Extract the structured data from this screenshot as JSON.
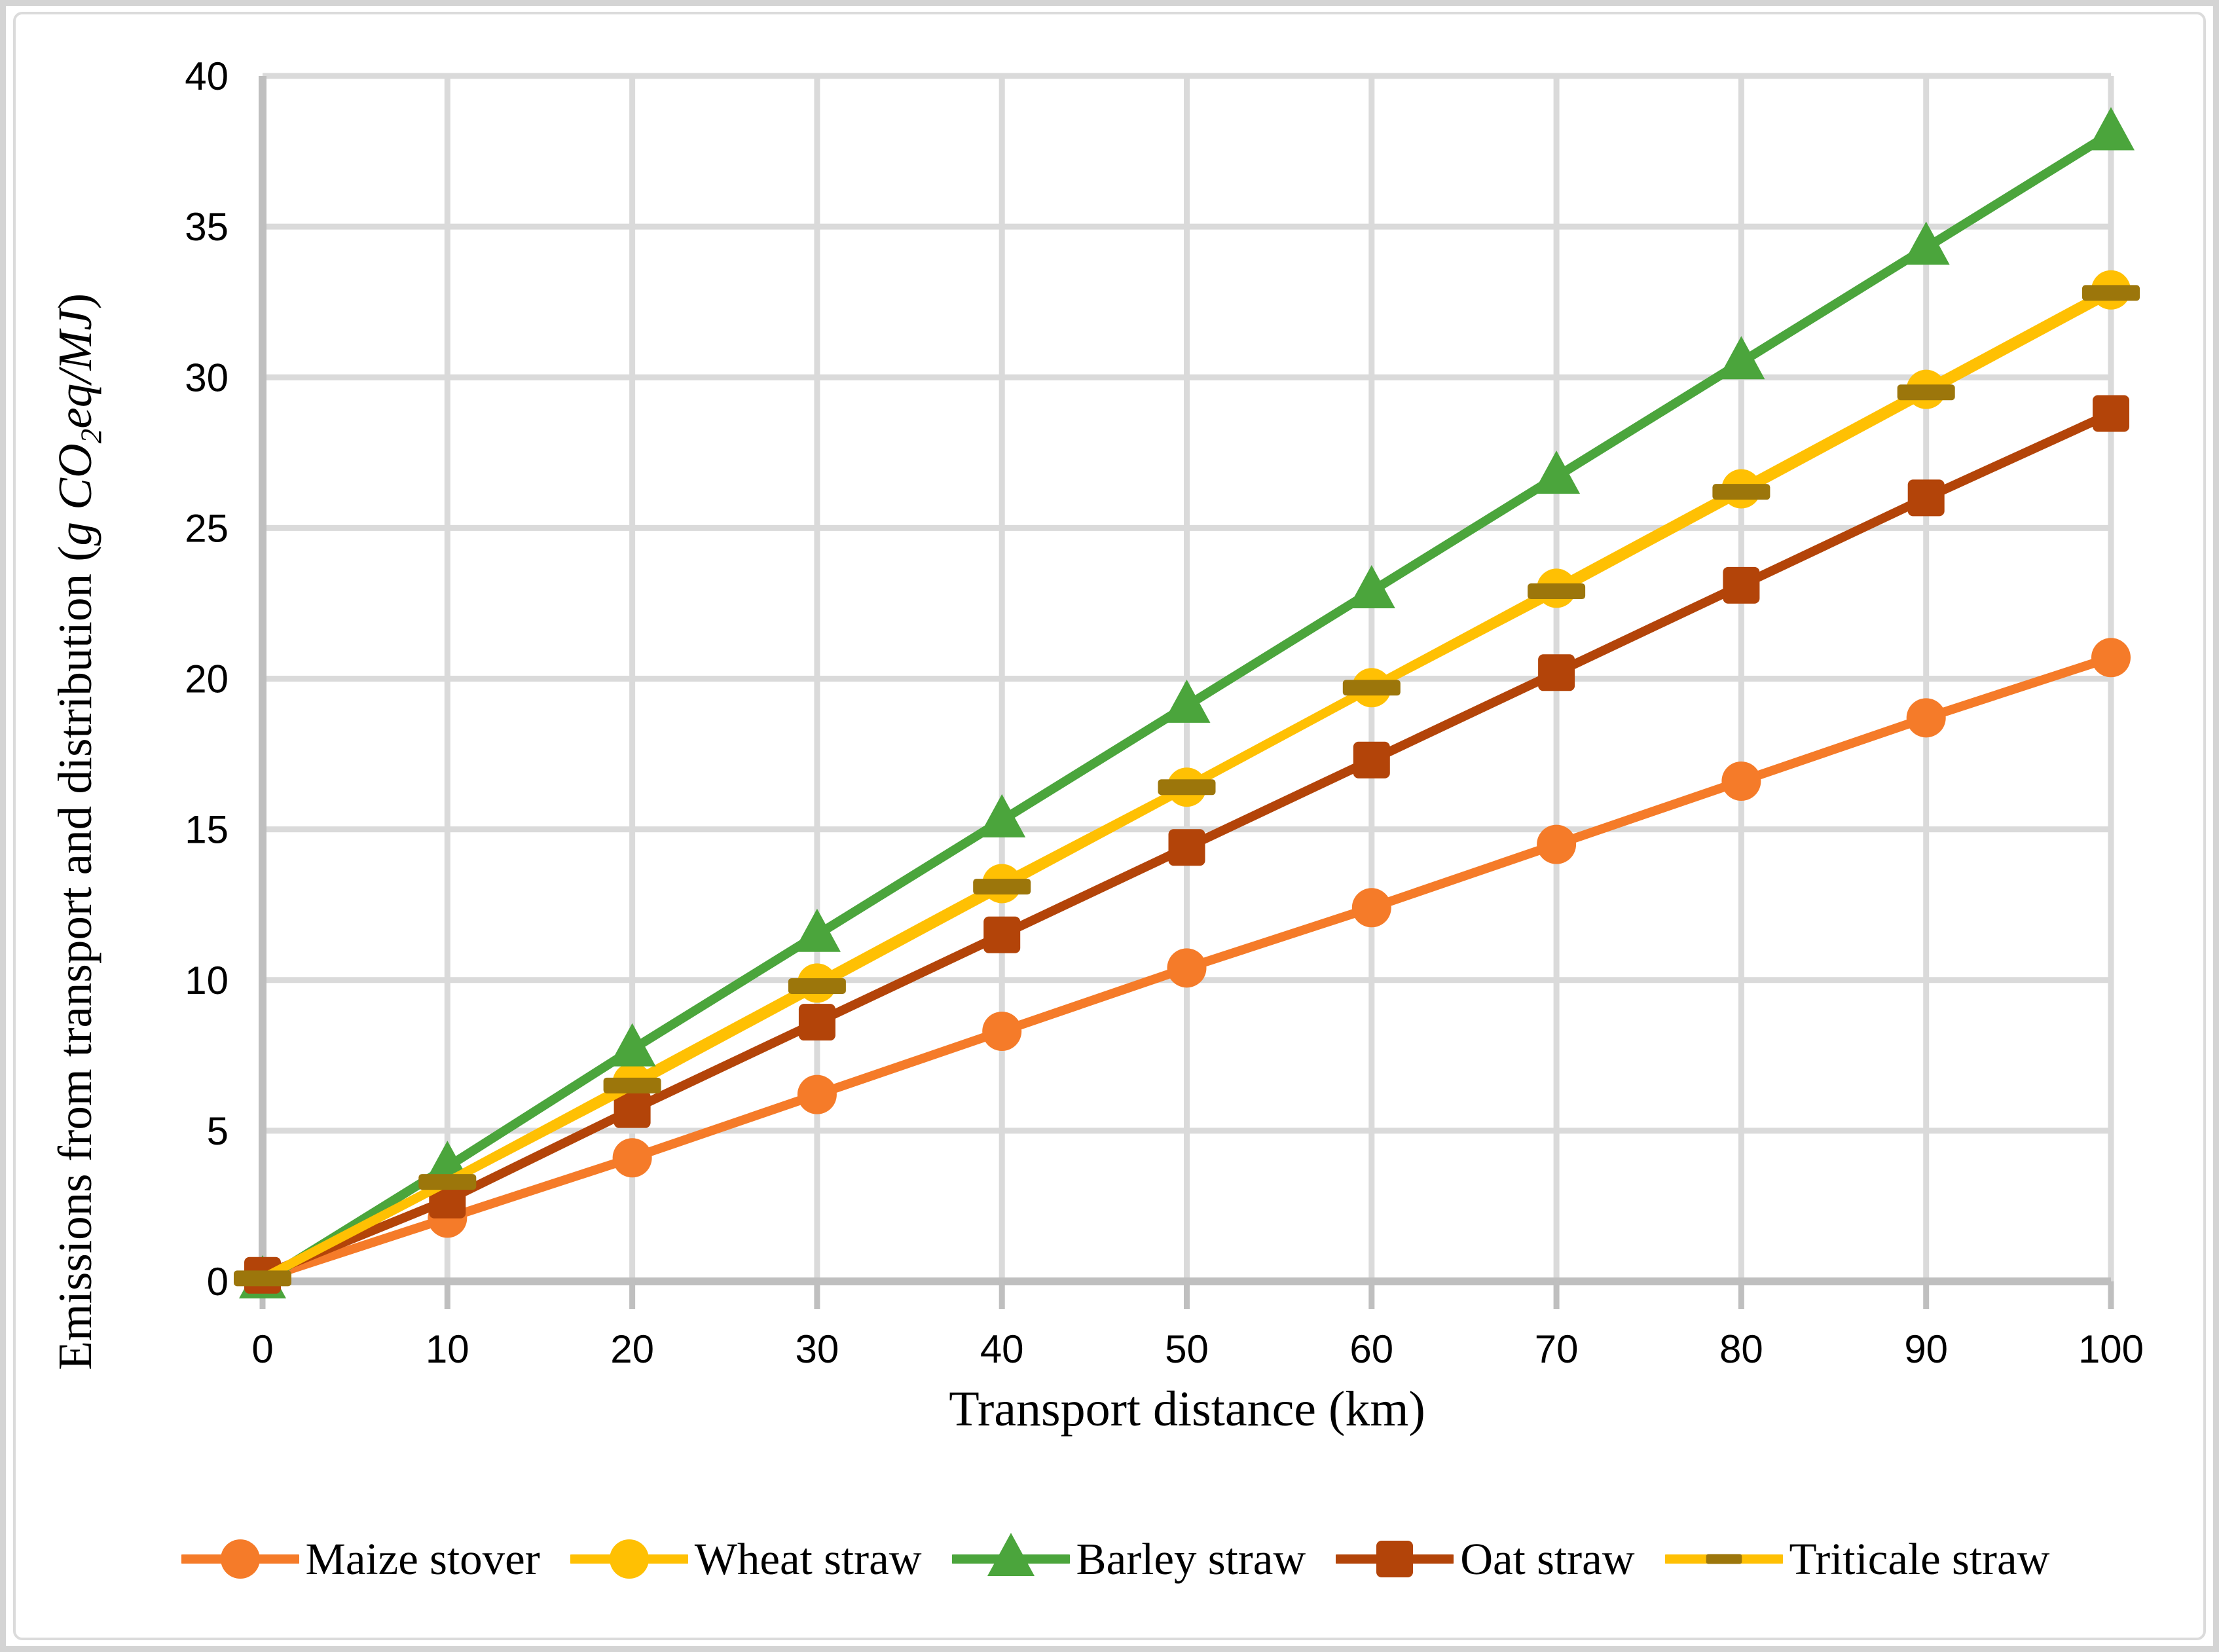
{
  "figure": {
    "y_axis_title": {
      "prefix": "Emissions from transport and distribution (",
      "unit_main": "g CO",
      "unit_sub": "2",
      "unit_rest": "eq/MJ",
      "suffix": ")"
    },
    "x_axis_title": "Transport distance (km)"
  },
  "chart_data": {
    "type": "line",
    "title": "",
    "xlabel": "Transport distance (km)",
    "ylabel": "Emissions from transport and distribution (g CO2eq/MJ)",
    "x": [
      0,
      10,
      20,
      30,
      40,
      50,
      60,
      70,
      80,
      90,
      100
    ],
    "x_tick_labels": [
      "0",
      "10",
      "20",
      "30",
      "40",
      "50",
      "60",
      "70",
      "80",
      "90",
      "100"
    ],
    "y_ticks": [
      0,
      5,
      10,
      15,
      20,
      25,
      30,
      35,
      40
    ],
    "y_tick_labels": [
      "0",
      "5",
      "10",
      "15",
      "20",
      "25",
      "30",
      "35",
      "40"
    ],
    "xlim": [
      0,
      100
    ],
    "ylim": [
      0,
      40
    ],
    "grid": true,
    "legend_position": "bottom",
    "series": [
      {
        "name": "Maize stover",
        "color": "#F57B29",
        "marker": "circle",
        "marker_color": "#F57B29",
        "values": [
          0.1,
          2.1,
          4.1,
          6.2,
          8.3,
          10.4,
          12.4,
          14.5,
          16.6,
          18.7,
          20.7
        ]
      },
      {
        "name": "Wheat straw",
        "color": "#FFC003",
        "marker": "circle",
        "marker_color": "#FFC003",
        "values": [
          0.1,
          3.3,
          6.6,
          9.9,
          13.2,
          16.4,
          19.7,
          23.0,
          26.3,
          29.6,
          32.9
        ]
      },
      {
        "name": "Barley straw",
        "color": "#4BA53C",
        "marker": "triangle",
        "marker_color": "#4BA53C",
        "values": [
          0.0,
          3.8,
          7.7,
          11.5,
          15.3,
          19.1,
          22.9,
          26.7,
          30.5,
          34.3,
          38.1
        ]
      },
      {
        "name": "Oat straw",
        "color": "#B34409",
        "marker": "square",
        "marker_color": "#B34409",
        "values": [
          0.2,
          2.7,
          5.7,
          8.6,
          11.5,
          14.4,
          17.3,
          20.2,
          23.1,
          26.0,
          28.8
        ]
      },
      {
        "name": "Triticale straw",
        "color": "#FFC003",
        "marker": "dash",
        "marker_color": "#9C760B",
        "values": [
          0.1,
          3.3,
          6.5,
          9.8,
          13.1,
          16.4,
          19.7,
          22.9,
          26.2,
          29.5,
          32.8
        ]
      }
    ],
    "colors": {
      "grid": "#DADADA",
      "axis": "#BFBFBF",
      "tick_label": "#000000",
      "frame_outer": "#D4D4D4",
      "frame_inner": "#DBDBDB"
    }
  }
}
